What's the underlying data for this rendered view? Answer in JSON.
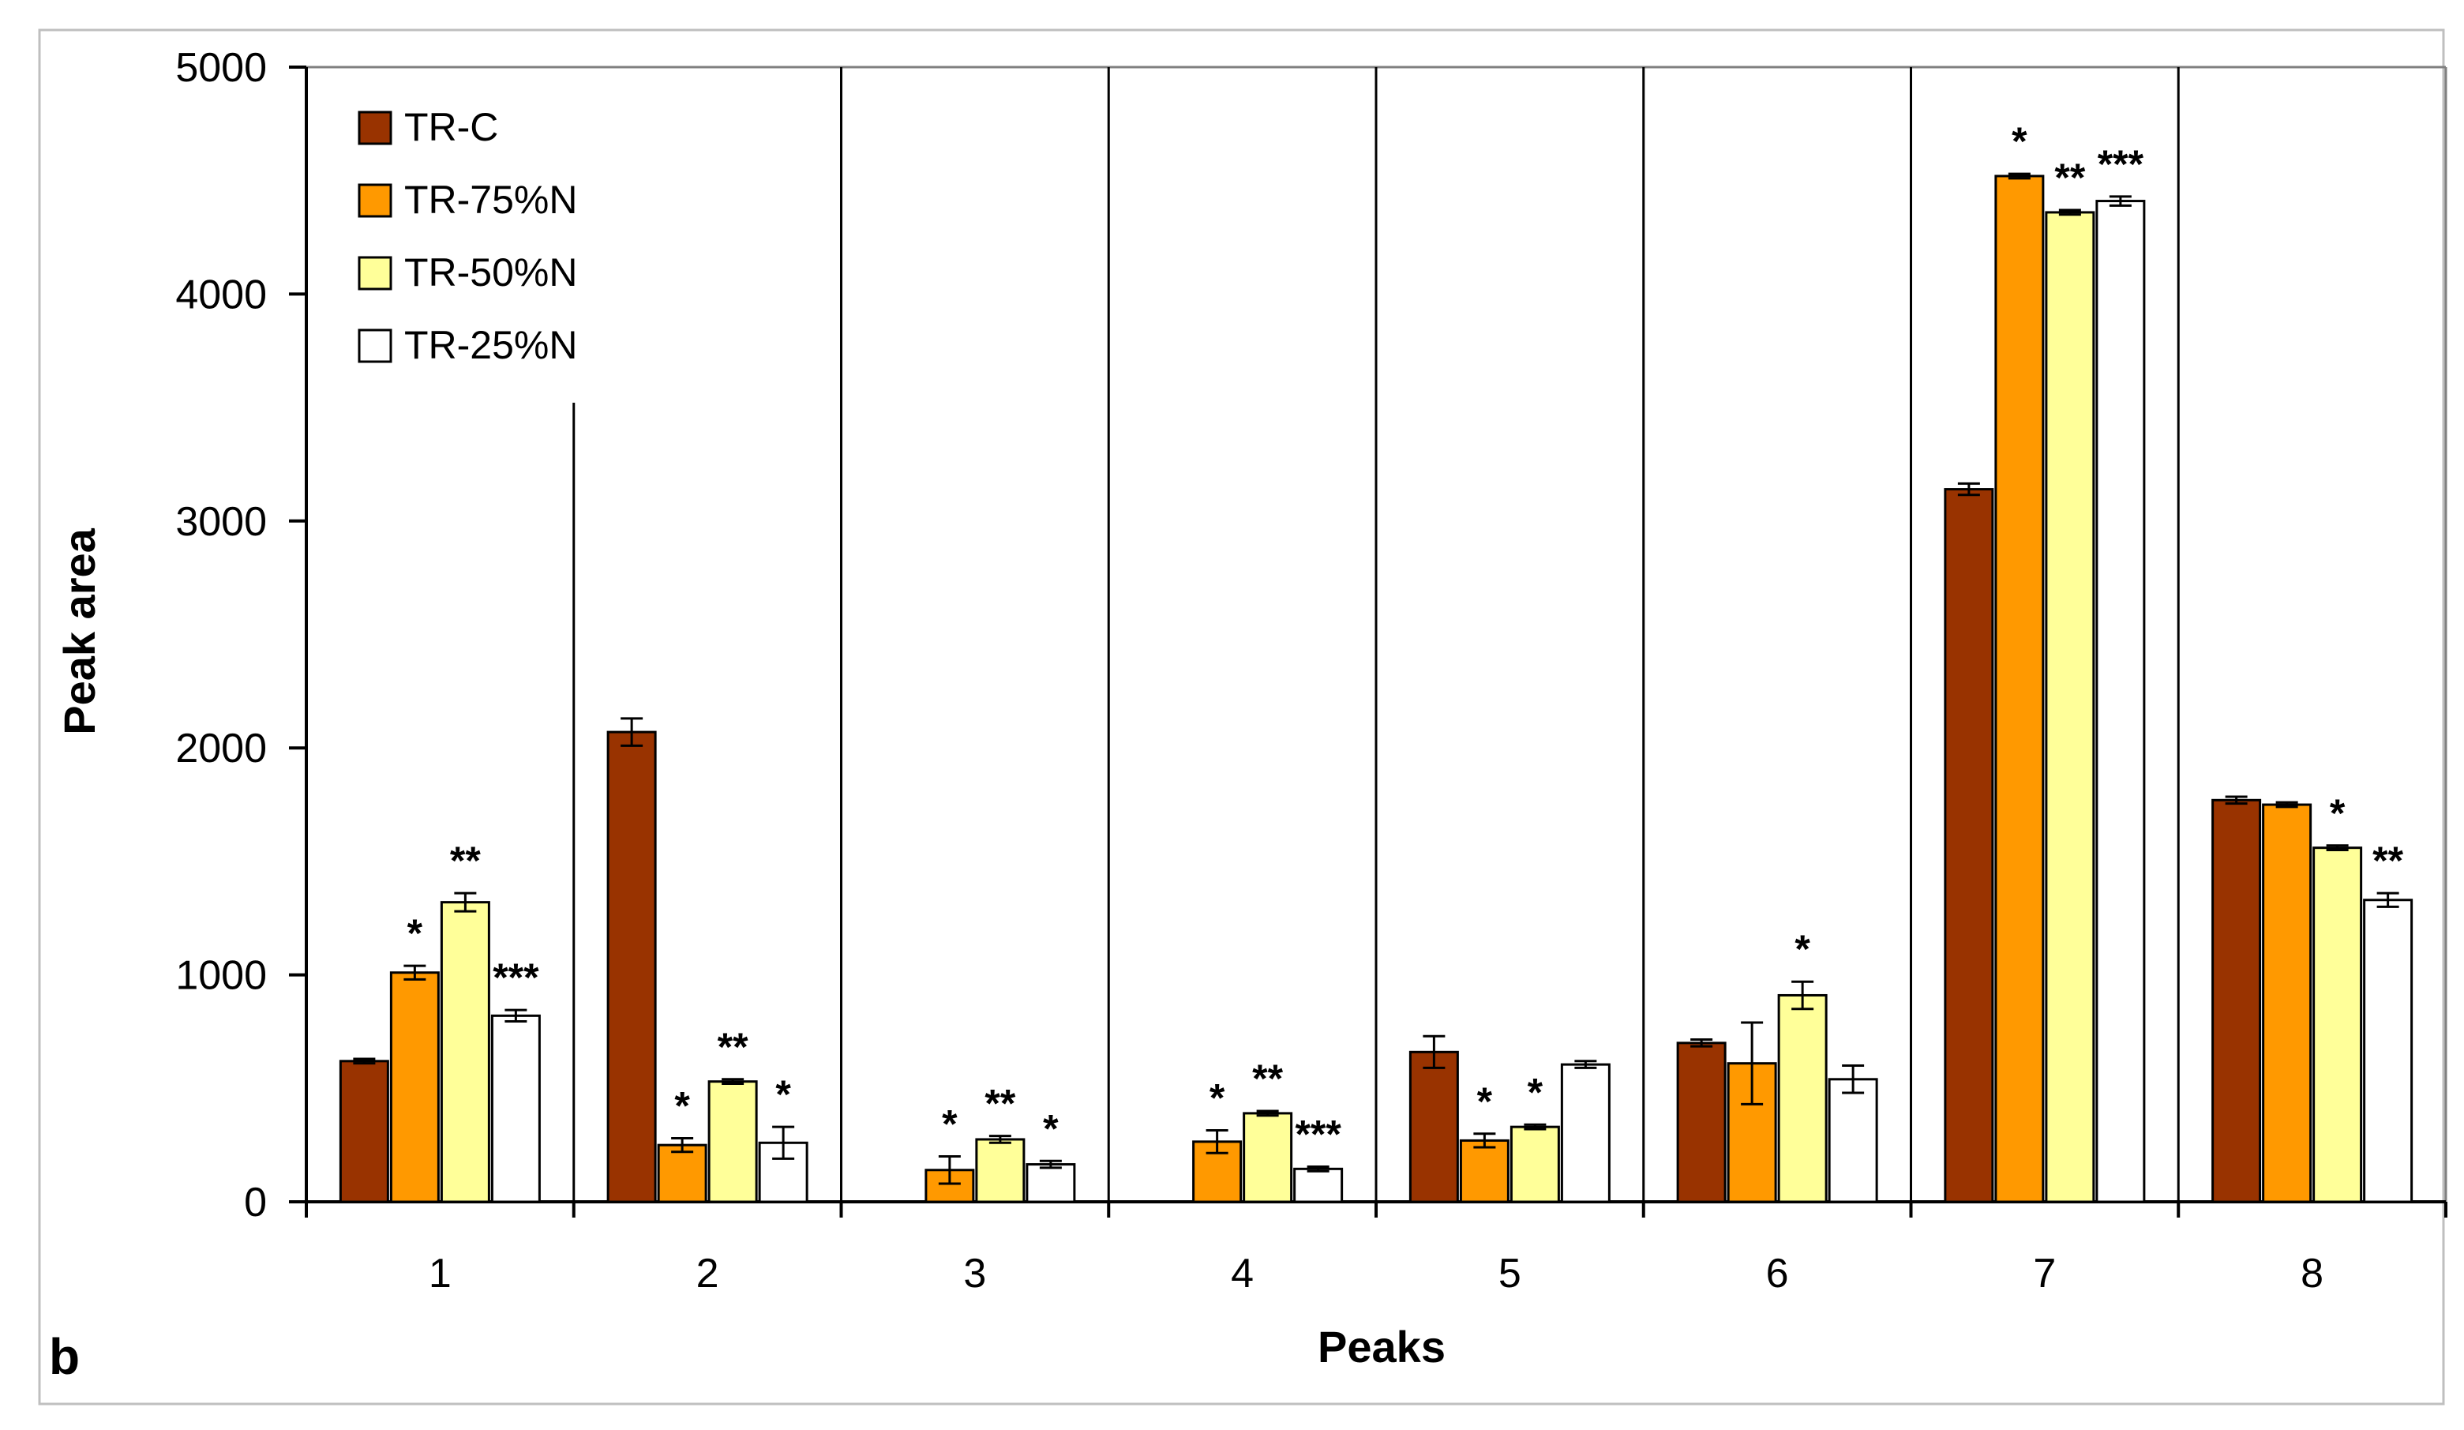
{
  "panel_label": "b",
  "chart_data": {
    "type": "bar",
    "title": "",
    "xlabel": "Peaks",
    "ylabel": "Peak area",
    "ylim": [
      0,
      5000
    ],
    "yticks": [
      0,
      1000,
      2000,
      3000,
      4000,
      5000
    ],
    "grid": false,
    "legend_position": "top-left",
    "categories": [
      "1",
      "2",
      "3",
      "4",
      "5",
      "6",
      "7",
      "8"
    ],
    "series": [
      {
        "name": "TR-C",
        "color": "#993300",
        "values": [
          620,
          2070,
          0,
          0,
          660,
          700,
          3140,
          1770
        ],
        "errors": [
          10,
          60,
          0,
          0,
          70,
          15,
          25,
          15
        ],
        "markers": [
          "",
          "",
          "",
          "",
          "",
          "",
          "",
          ""
        ]
      },
      {
        "name": "TR-75%N",
        "color": "#FF9900",
        "values": [
          1010,
          250,
          140,
          265,
          270,
          610,
          4520,
          1750
        ],
        "errors": [
          30,
          30,
          60,
          50,
          30,
          180,
          10,
          10
        ],
        "markers": [
          "*",
          "*",
          "*",
          "*",
          "*",
          "",
          "*",
          ""
        ]
      },
      {
        "name": "TR-50%N",
        "color": "#FFFF99",
        "values": [
          1320,
          530,
          275,
          390,
          330,
          910,
          4360,
          1560
        ],
        "errors": [
          40,
          10,
          15,
          10,
          10,
          60,
          10,
          10
        ],
        "markers": [
          "**",
          "**",
          "**",
          "**",
          "*",
          "*",
          "**",
          "*"
        ]
      },
      {
        "name": "TR-25%N",
        "color": "#FFFFFF",
        "values": [
          820,
          260,
          165,
          145,
          605,
          540,
          4410,
          1330
        ],
        "errors": [
          25,
          70,
          15,
          10,
          15,
          60,
          20,
          30
        ],
        "markers": [
          "***",
          "*",
          "*",
          "***",
          "",
          "",
          "***",
          "**"
        ]
      }
    ]
  }
}
